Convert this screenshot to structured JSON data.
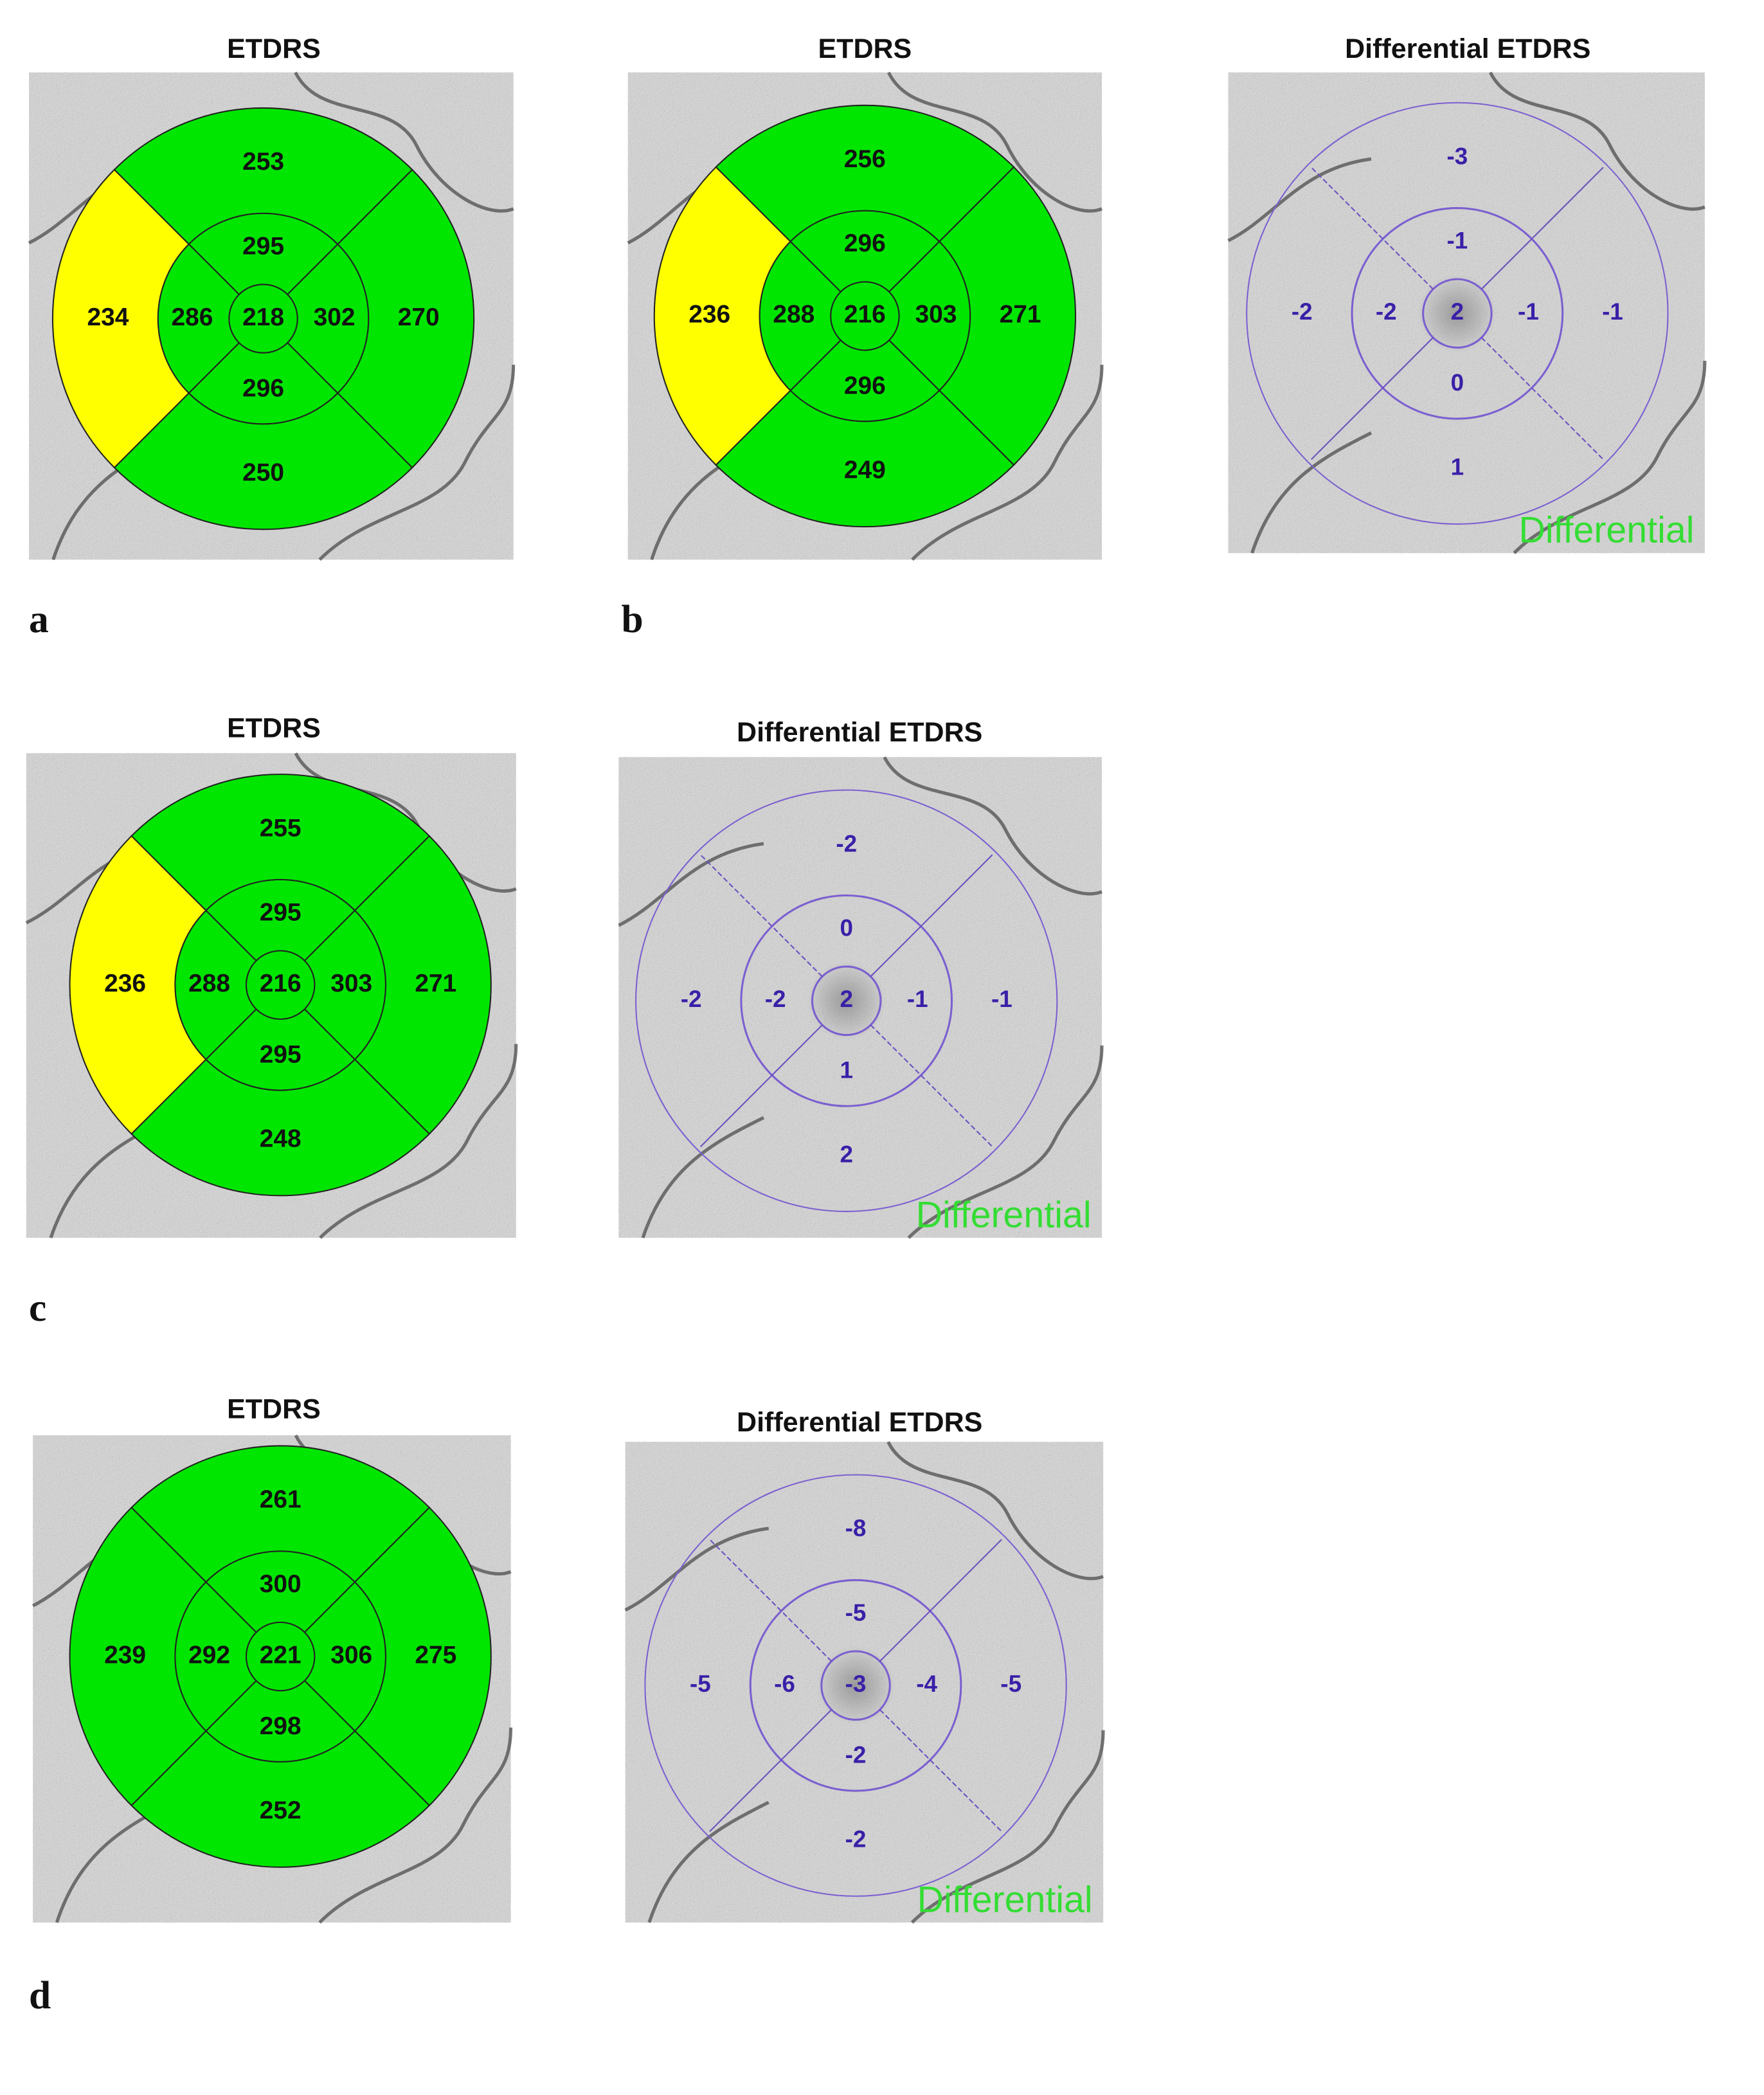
{
  "panels": [
    {
      "label": "a",
      "maps": [
        {
          "title": "ETDRS",
          "kind": "etdrs",
          "values": [
            218,
            295,
            302,
            296,
            286,
            253,
            270,
            250,
            234
          ],
          "colors": [
            "#00e600",
            "#00e600",
            "#00e600",
            "#00e600",
            "#00e600",
            "#00e600",
            "#00e600",
            "#00e600",
            "#ffff00"
          ]
        }
      ]
    },
    {
      "label": "b",
      "maps": [
        {
          "title": "ETDRS",
          "kind": "etdrs",
          "values": [
            216,
            296,
            303,
            296,
            288,
            256,
            271,
            249,
            236
          ],
          "colors": [
            "#00e600",
            "#00e600",
            "#00e600",
            "#00e600",
            "#00e600",
            "#00e600",
            "#00e600",
            "#00e600",
            "#ffff00"
          ]
        },
        {
          "title": "Differential ETDRS",
          "kind": "differential",
          "values": [
            2,
            -1,
            -1,
            0,
            -2,
            -3,
            -1,
            1,
            -2
          ],
          "watermark": "Differential"
        }
      ]
    },
    {
      "label": "c",
      "maps": [
        {
          "title": "ETDRS",
          "kind": "etdrs",
          "values": [
            216,
            295,
            303,
            295,
            288,
            255,
            271,
            248,
            236
          ],
          "colors": [
            "#00e600",
            "#00e600",
            "#00e600",
            "#00e600",
            "#00e600",
            "#00e600",
            "#00e600",
            "#00e600",
            "#ffff00"
          ]
        },
        {
          "title": "Differential ETDRS",
          "kind": "differential",
          "values": [
            2,
            0,
            -1,
            1,
            -2,
            -2,
            -1,
            2,
            -2
          ],
          "watermark": "Differential"
        }
      ]
    },
    {
      "label": "d",
      "maps": [
        {
          "title": "ETDRS",
          "kind": "etdrs",
          "values": [
            221,
            300,
            306,
            298,
            292,
            261,
            275,
            252,
            239
          ],
          "colors": [
            "#00e600",
            "#00e600",
            "#00e600",
            "#00e600",
            "#00e600",
            "#00e600",
            "#00e600",
            "#00e600",
            "#00e600"
          ]
        },
        {
          "title": "Differential ETDRS",
          "kind": "differential",
          "values": [
            -3,
            -5,
            -4,
            -2,
            -6,
            -8,
            -5,
            -2,
            -5
          ],
          "watermark": "Differential"
        }
      ]
    }
  ]
}
